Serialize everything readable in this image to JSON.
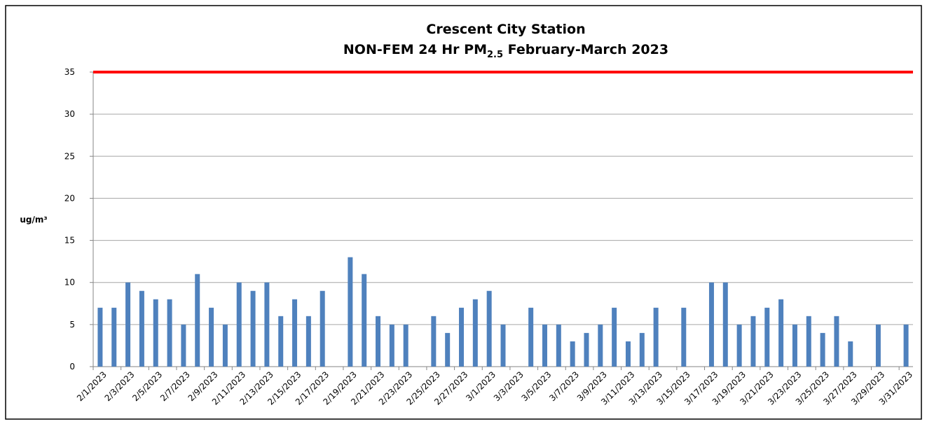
{
  "chart_data": {
    "type": "bar",
    "title": "Crescent City Station",
    "subtitle_parts": [
      "NON-FEM 24 Hr PM",
      "2.5",
      " February-March  2023"
    ],
    "y_label": "ug/m³",
    "categories": [
      "2/1/2023",
      null,
      "2/3/2023",
      null,
      "2/5/2023",
      null,
      "2/7/2023",
      null,
      "2/9/2023",
      null,
      "2/11/2023",
      null,
      "2/13/2023",
      null,
      "2/15/2023",
      null,
      "2/17/2023",
      null,
      "2/19/2023",
      null,
      "2/21/2023",
      null,
      "2/23/2023",
      null,
      "2/25/2023",
      null,
      "2/27/2023",
      null,
      "3/1/2023",
      null,
      "3/3/2023",
      null,
      "3/5/2023",
      null,
      "3/7/2023",
      null,
      "3/9/2023",
      null,
      "3/11/2023",
      null,
      "3/13/2023",
      null,
      "3/15/2023",
      null,
      "3/17/2023",
      null,
      "3/19/2023",
      null,
      "3/21/2023",
      null,
      "3/23/2023",
      null,
      "3/25/2023",
      null,
      "3/27/2023",
      null,
      "3/29/2023",
      null,
      "3/31/2023"
    ],
    "values": [
      7,
      7,
      10,
      9,
      8,
      8,
      5,
      11,
      7,
      5,
      10,
      9,
      10,
      6,
      8,
      6,
      9,
      null,
      13,
      11,
      6,
      5,
      5,
      null,
      6,
      4,
      7,
      8,
      9,
      5,
      null,
      7,
      5,
      5,
      3,
      4,
      5,
      7,
      3,
      4,
      7,
      null,
      7,
      null,
      10,
      10,
      5,
      6,
      7,
      8,
      5,
      6,
      4,
      6,
      3,
      null,
      5,
      null,
      5
    ],
    "color": "#4f81bd",
    "threshold": 35,
    "threshold_color": "#ff0000",
    "ylim": [
      0,
      35
    ],
    "yticks": [
      0,
      5,
      10,
      15,
      20,
      25,
      30,
      35
    ],
    "grid": true
  }
}
